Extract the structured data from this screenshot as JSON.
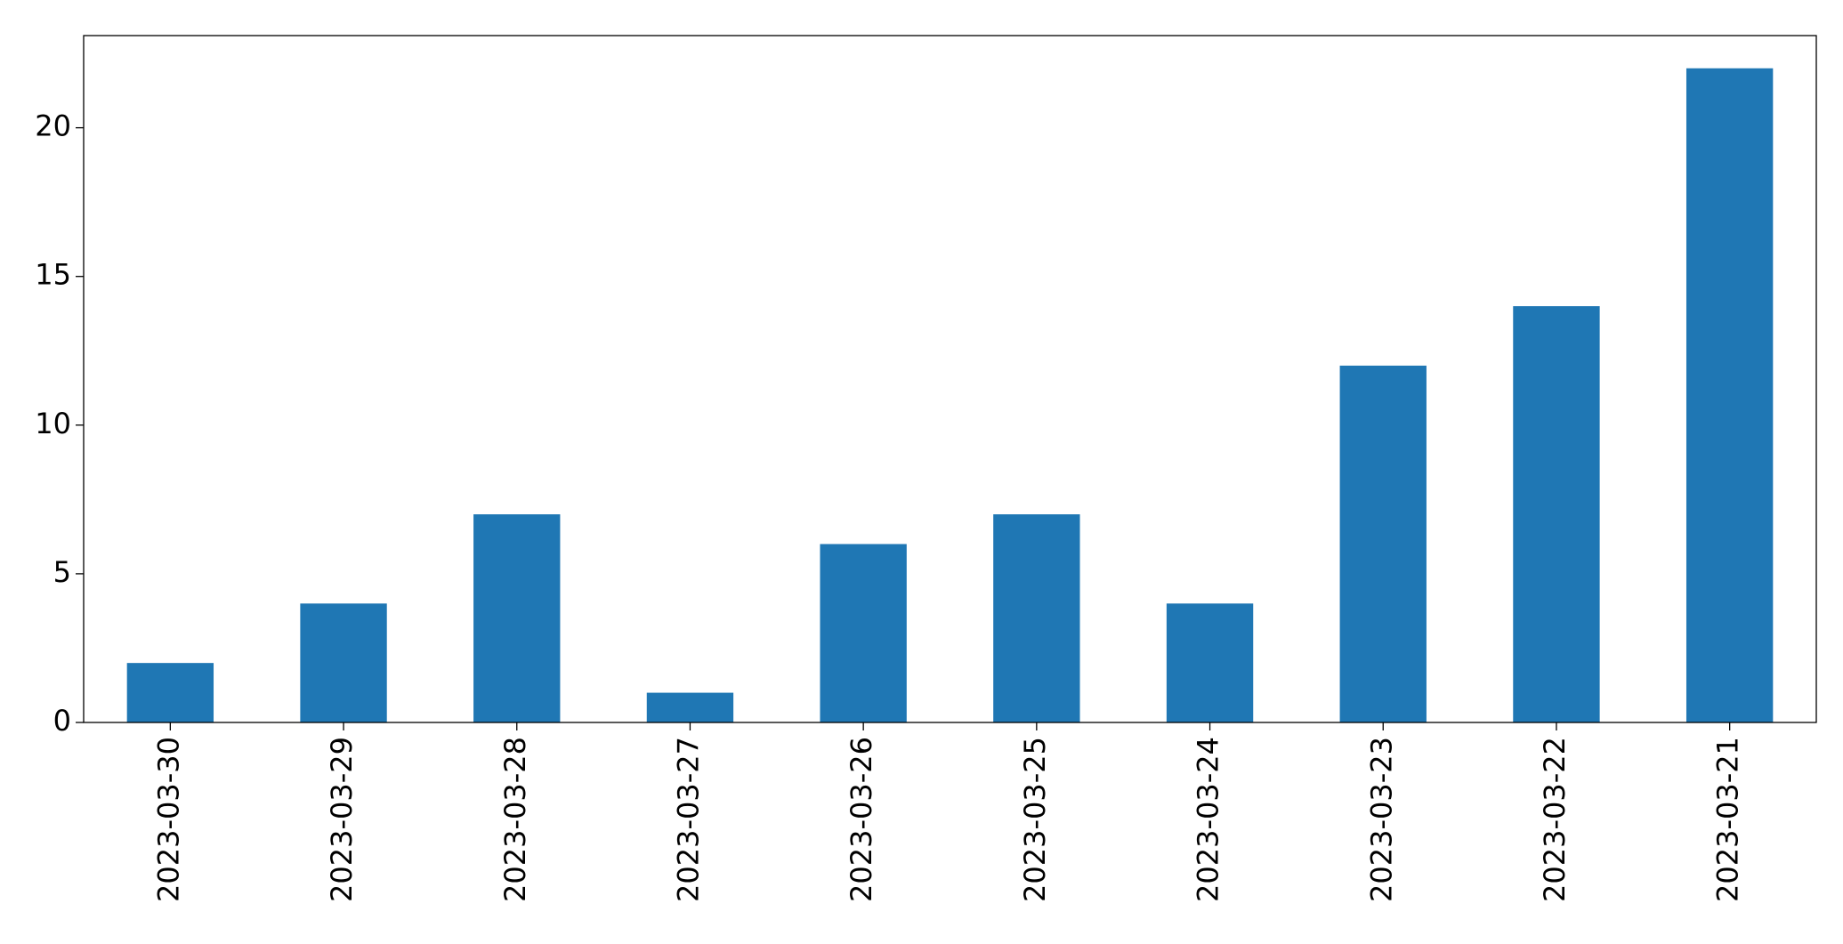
{
  "chart_data": {
    "type": "bar",
    "categories": [
      "2023-03-30",
      "2023-03-29",
      "2023-03-28",
      "2023-03-27",
      "2023-03-26",
      "2023-03-25",
      "2023-03-24",
      "2023-03-23",
      "2023-03-22",
      "2023-03-21"
    ],
    "values": [
      2,
      4,
      7,
      1,
      6,
      7,
      4,
      12,
      14,
      22
    ],
    "color": "#1f77b4",
    "ylim": [
      0,
      23.1
    ],
    "yticks": [
      0,
      5,
      10,
      15,
      20
    ],
    "grid": false
  }
}
